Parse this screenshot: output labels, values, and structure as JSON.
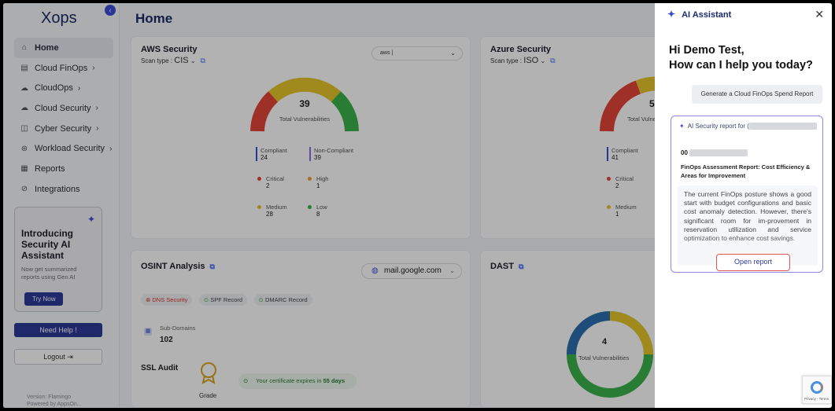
{
  "sidebar": {
    "logo": "Xops",
    "items": [
      {
        "label": "Home",
        "icon": "home-icon",
        "glyph": "⌂",
        "chev": ""
      },
      {
        "label": "Cloud FinOps",
        "icon": "finops-icon",
        "glyph": "▤",
        "chev": "›"
      },
      {
        "label": "CloudOps",
        "icon": "cloudops-icon",
        "glyph": "☁",
        "chev": "›"
      },
      {
        "label": "Cloud Security",
        "icon": "cloud-security-icon",
        "glyph": "☁",
        "chev": "›"
      },
      {
        "label": "Cyber Security",
        "icon": "shield-icon",
        "glyph": "◫",
        "chev": "›"
      },
      {
        "label": "Workload Security",
        "icon": "workload-icon",
        "glyph": "⊛",
        "chev": "›"
      },
      {
        "label": "Reports",
        "icon": "reports-icon",
        "glyph": "▦",
        "chev": ""
      },
      {
        "label": "Integrations",
        "icon": "link-icon",
        "glyph": "⊘",
        "chev": ""
      }
    ],
    "promo": {
      "title": "Introducing Security AI Assistant",
      "desc": "Now get summarized reports using Gen AI",
      "cta": "Try Now"
    },
    "need_help": "Need Help !",
    "logout": "Logout",
    "version_line1": "Version: Flamingo",
    "version_line2": "Powered by AppsOn..."
  },
  "page": {
    "title": "Home"
  },
  "aws": {
    "title": "AWS Security",
    "scan_label": "Scan type :",
    "scan_value": "CIS",
    "select_value": "aws",
    "total": "39",
    "total_label": "Total Vulnerabilities",
    "compliant_label": "Compliant",
    "compliant_value": "24",
    "noncompliant_label": "Non-Compliant",
    "noncompliant_value": "39",
    "critical_label": "Critical",
    "critical_value": "2",
    "high_label": "High",
    "high_value": "1",
    "medium_label": "Medium",
    "medium_value": "28",
    "low_label": "Low",
    "low_value": "8"
  },
  "azure": {
    "title": "Azure Security",
    "scan_label": "Scan type :",
    "scan_value": "ISO",
    "total": "5",
    "total_label": "Total Vulne",
    "compliant_label": "Compliant",
    "compliant_value": "41",
    "critical_label": "Critical",
    "critical_value": "2",
    "medium_label": "Medium",
    "medium_value": "1"
  },
  "osint": {
    "title": "OSINT Analysis",
    "domain": "mail.google.com",
    "pills": [
      "DNS Security",
      "SPF Record",
      "DMARC Record"
    ],
    "subdomains_label": "Sub-Domains",
    "subdomains_value": "102",
    "ssl_title": "SSL Audit",
    "grade_label": "Grade",
    "cert_prefix": "Your certificate expires in ",
    "cert_days": "55 days"
  },
  "dast": {
    "title": "DAST",
    "total": "4",
    "total_label": "Total Vulnerabilities"
  },
  "ai": {
    "title": "AI Assistant",
    "greeting_line1": "Hi Demo Test,",
    "greeting_line2": "How can I help you today?",
    "suggestion": "Generate a Cloud FinOps Spend Report",
    "report_head": "AI Security report for (",
    "report_id": "00",
    "report_title": "FinOps Assessment Report: Cost Efficiency & Areas for Improvement",
    "report_body": "The current FinOps posture shows a good start with budget configurations and basic cost anomaly detection. However, there's significant room for im-provement in reservation utilization and service optimization to enhance cost savings.",
    "open_btn": "Open report"
  },
  "colors": {
    "accent": "#3b4bd9",
    "brand": "#1b2a6b",
    "critical": "#e2453a",
    "high": "#f0a030",
    "medium": "#e6c42a",
    "low": "#3bb24a"
  }
}
